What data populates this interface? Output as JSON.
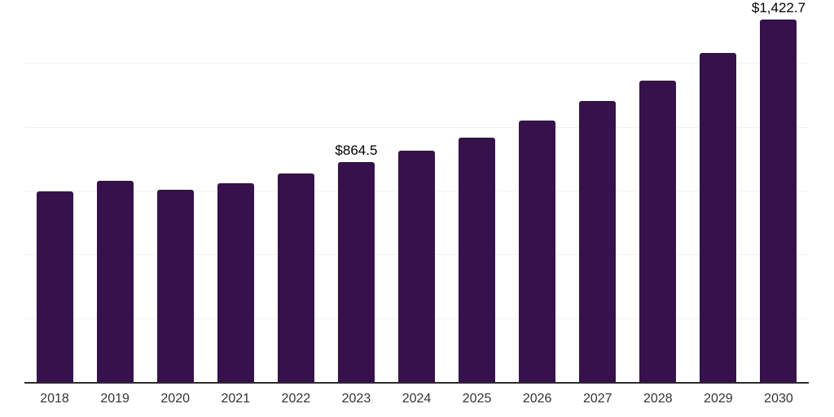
{
  "chart_data": {
    "type": "bar",
    "categories": [
      "2018",
      "2019",
      "2020",
      "2021",
      "2022",
      "2023",
      "2024",
      "2025",
      "2026",
      "2027",
      "2028",
      "2029",
      "2030"
    ],
    "values": [
      750,
      792,
      756,
      782,
      820,
      864.5,
      910,
      961,
      1029,
      1103,
      1184,
      1293,
      1422.7
    ],
    "data_labels": [
      "",
      "",
      "",
      "",
      "",
      "$864.5",
      "",
      "",
      "",
      "",
      "",
      "",
      "$1,422.7"
    ],
    "title": "",
    "xlabel": "",
    "ylabel": "",
    "ylim": [
      0,
      1500
    ],
    "gridline_step": 250,
    "grid": "horizontal",
    "legend": "none",
    "colors": {
      "bar": "#36114B",
      "axis_line": "#2b2b2b",
      "gridline": "#f2f2f2",
      "value_label": "#000000",
      "tick_label": "#333333",
      "background": "#ffffff"
    }
  }
}
